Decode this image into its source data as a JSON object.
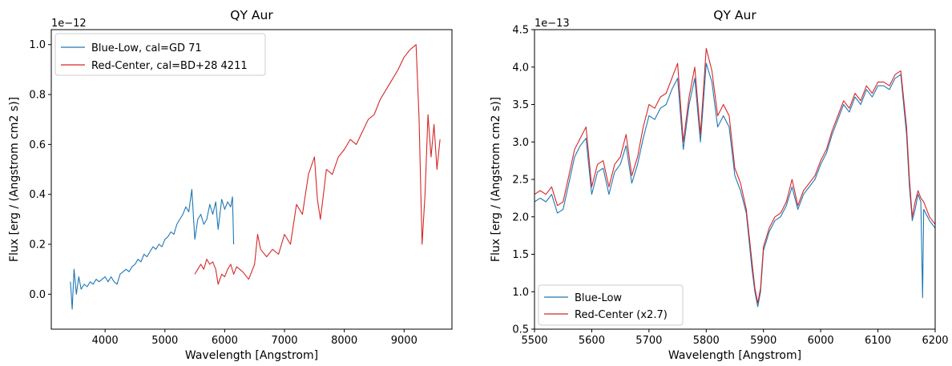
{
  "chart_data": [
    {
      "type": "line",
      "title": "QY Aur",
      "xlabel": "Wavelength [Angstrom]",
      "ylabel": "Flux [erg / (Angstrom cm2 s)]",
      "y_offset_label": "1e−12",
      "xlim": [
        3100,
        9800
      ],
      "ylim": [
        -0.14,
        1.06
      ],
      "x_ticks": [
        4000,
        5000,
        6000,
        7000,
        8000,
        9000
      ],
      "x_tick_labels": [
        "4000",
        "5000",
        "6000",
        "7000",
        "8000",
        "9000"
      ],
      "y_ticks": [
        0.0,
        0.2,
        0.4,
        0.6,
        0.8,
        1.0
      ],
      "y_tick_labels": [
        "0.0",
        "0.2",
        "0.4",
        "0.6",
        "0.8",
        "1.0"
      ],
      "legend_position": "top-left",
      "grid": false,
      "series": [
        {
          "name": "Blue-Low, cal=GD 71",
          "color": "#1f77b4",
          "x": [
            3420,
            3450,
            3480,
            3520,
            3560,
            3600,
            3650,
            3700,
            3750,
            3800,
            3850,
            3900,
            3950,
            4000,
            4050,
            4100,
            4150,
            4200,
            4250,
            4300,
            4350,
            4400,
            4450,
            4500,
            4550,
            4600,
            4650,
            4700,
            4750,
            4800,
            4850,
            4900,
            4950,
            5000,
            5050,
            5100,
            5150,
            5200,
            5250,
            5300,
            5350,
            5400,
            5450,
            5480,
            5500,
            5550,
            5600,
            5650,
            5700,
            5750,
            5800,
            5850,
            5890,
            5950,
            6000,
            6050,
            6100,
            6130,
            6150
          ],
          "y": [
            0.05,
            -0.06,
            0.1,
            0.0,
            0.07,
            0.02,
            0.04,
            0.03,
            0.05,
            0.04,
            0.06,
            0.05,
            0.06,
            0.07,
            0.05,
            0.07,
            0.05,
            0.04,
            0.08,
            0.09,
            0.1,
            0.09,
            0.11,
            0.12,
            0.14,
            0.13,
            0.16,
            0.15,
            0.17,
            0.19,
            0.18,
            0.2,
            0.19,
            0.22,
            0.23,
            0.25,
            0.24,
            0.28,
            0.3,
            0.32,
            0.35,
            0.33,
            0.42,
            0.3,
            0.22,
            0.3,
            0.32,
            0.28,
            0.3,
            0.36,
            0.32,
            0.37,
            0.26,
            0.38,
            0.34,
            0.37,
            0.35,
            0.39,
            0.2
          ]
        },
        {
          "name": "Red-Center, cal=BD+28 4211",
          "color": "#d62728",
          "x": [
            5500,
            5550,
            5600,
            5650,
            5700,
            5750,
            5800,
            5850,
            5890,
            5950,
            6000,
            6050,
            6100,
            6150,
            6200,
            6300,
            6400,
            6500,
            6550,
            6600,
            6700,
            6800,
            6900,
            7000,
            7100,
            7200,
            7300,
            7400,
            7500,
            7550,
            7600,
            7650,
            7700,
            7800,
            7900,
            8000,
            8100,
            8200,
            8300,
            8400,
            8500,
            8600,
            8700,
            8800,
            8900,
            9000,
            9100,
            9200,
            9250,
            9300,
            9350,
            9400,
            9450,
            9500,
            9550,
            9600
          ],
          "y": [
            0.08,
            0.1,
            0.12,
            0.1,
            0.14,
            0.12,
            0.13,
            0.1,
            0.04,
            0.08,
            0.07,
            0.1,
            0.12,
            0.08,
            0.11,
            0.09,
            0.06,
            0.12,
            0.24,
            0.18,
            0.15,
            0.18,
            0.16,
            0.24,
            0.2,
            0.36,
            0.32,
            0.48,
            0.55,
            0.38,
            0.3,
            0.4,
            0.5,
            0.48,
            0.55,
            0.58,
            0.62,
            0.6,
            0.65,
            0.7,
            0.72,
            0.78,
            0.82,
            0.86,
            0.9,
            0.95,
            0.98,
            1.0,
            0.7,
            0.2,
            0.4,
            0.72,
            0.55,
            0.68,
            0.5,
            0.62
          ]
        }
      ]
    },
    {
      "type": "line",
      "title": "QY Aur",
      "xlabel": "Wavelength [Angstrom]",
      "ylabel": "Flux [erg / (Angstrom cm2 s)]",
      "y_offset_label": "1e−13",
      "xlim": [
        5500,
        6200
      ],
      "ylim": [
        0.5,
        4.5
      ],
      "x_ticks": [
        5500,
        5600,
        5700,
        5800,
        5900,
        6000,
        6100,
        6200
      ],
      "x_tick_labels": [
        "5500",
        "5600",
        "5700",
        "5800",
        "5900",
        "6000",
        "6100",
        "6200"
      ],
      "y_ticks": [
        0.5,
        1.0,
        1.5,
        2.0,
        2.5,
        3.0,
        3.5,
        4.0,
        4.5
      ],
      "y_tick_labels": [
        "0.5",
        "1.0",
        "1.5",
        "2.0",
        "2.5",
        "3.0",
        "3.5",
        "4.0",
        "4.5"
      ],
      "legend_position": "bottom-left",
      "grid": false,
      "series": [
        {
          "name": "Blue-Low",
          "color": "#1f77b4",
          "x": [
            5500,
            5510,
            5520,
            5530,
            5540,
            5550,
            5560,
            5570,
            5580,
            5590,
            5600,
            5610,
            5620,
            5630,
            5640,
            5650,
            5660,
            5670,
            5680,
            5690,
            5700,
            5710,
            5720,
            5730,
            5740,
            5750,
            5760,
            5770,
            5780,
            5790,
            5800,
            5810,
            5820,
            5830,
            5840,
            5850,
            5860,
            5870,
            5880,
            5885,
            5890,
            5895,
            5900,
            5910,
            5920,
            5930,
            5940,
            5950,
            5960,
            5970,
            5980,
            5990,
            6000,
            6010,
            6020,
            6030,
            6040,
            6050,
            6060,
            6070,
            6080,
            6090,
            6100,
            6110,
            6120,
            6130,
            6140,
            6150,
            6155,
            6160,
            6165,
            6170,
            6175,
            6178,
            6180,
            6190,
            6200
          ],
          "y": [
            2.2,
            2.25,
            2.2,
            2.3,
            2.05,
            2.1,
            2.45,
            2.8,
            2.95,
            3.05,
            2.3,
            2.6,
            2.65,
            2.3,
            2.6,
            2.7,
            2.95,
            2.45,
            2.7,
            3.05,
            3.35,
            3.3,
            3.45,
            3.5,
            3.7,
            3.85,
            2.9,
            3.5,
            3.85,
            3.0,
            4.05,
            3.8,
            3.2,
            3.35,
            3.2,
            2.55,
            2.35,
            2.05,
            1.3,
            1.0,
            0.8,
            1.0,
            1.55,
            1.8,
            1.95,
            2.0,
            2.15,
            2.4,
            2.1,
            2.3,
            2.4,
            2.5,
            2.7,
            2.85,
            3.1,
            3.3,
            3.5,
            3.4,
            3.6,
            3.5,
            3.7,
            3.6,
            3.75,
            3.75,
            3.7,
            3.85,
            3.9,
            3.1,
            2.4,
            1.95,
            2.1,
            2.3,
            2.2,
            0.92,
            2.1,
            1.95,
            1.85
          ]
        },
        {
          "name": "Red-Center (x2.7)",
          "color": "#d62728",
          "x": [
            5500,
            5510,
            5520,
            5530,
            5540,
            5550,
            5560,
            5570,
            5580,
            5590,
            5600,
            5610,
            5620,
            5630,
            5640,
            5650,
            5660,
            5670,
            5680,
            5690,
            5700,
            5710,
            5720,
            5730,
            5740,
            5750,
            5760,
            5770,
            5780,
            5790,
            5800,
            5810,
            5820,
            5830,
            5840,
            5850,
            5860,
            5870,
            5880,
            5885,
            5890,
            5895,
            5900,
            5910,
            5920,
            5930,
            5940,
            5950,
            5960,
            5970,
            5980,
            5990,
            6000,
            6010,
            6020,
            6030,
            6040,
            6050,
            6060,
            6070,
            6080,
            6090,
            6100,
            6110,
            6120,
            6130,
            6140,
            6150,
            6155,
            6160,
            6165,
            6170,
            6175,
            6180,
            6190,
            6200
          ],
          "y": [
            2.3,
            2.35,
            2.3,
            2.4,
            2.15,
            2.2,
            2.55,
            2.9,
            3.05,
            3.2,
            2.4,
            2.7,
            2.75,
            2.4,
            2.7,
            2.8,
            3.1,
            2.55,
            2.8,
            3.2,
            3.5,
            3.45,
            3.6,
            3.65,
            3.85,
            4.05,
            3.0,
            3.6,
            4.0,
            3.1,
            4.25,
            3.95,
            3.35,
            3.5,
            3.35,
            2.65,
            2.45,
            2.1,
            1.4,
            1.05,
            0.85,
            1.05,
            1.6,
            1.85,
            2.0,
            2.05,
            2.2,
            2.5,
            2.15,
            2.35,
            2.45,
            2.55,
            2.75,
            2.9,
            3.15,
            3.35,
            3.55,
            3.45,
            3.65,
            3.55,
            3.75,
            3.65,
            3.8,
            3.8,
            3.75,
            3.9,
            3.95,
            3.2,
            2.5,
            2.0,
            2.2,
            2.35,
            2.25,
            2.2,
            2.0,
            1.9
          ]
        }
      ]
    }
  ]
}
